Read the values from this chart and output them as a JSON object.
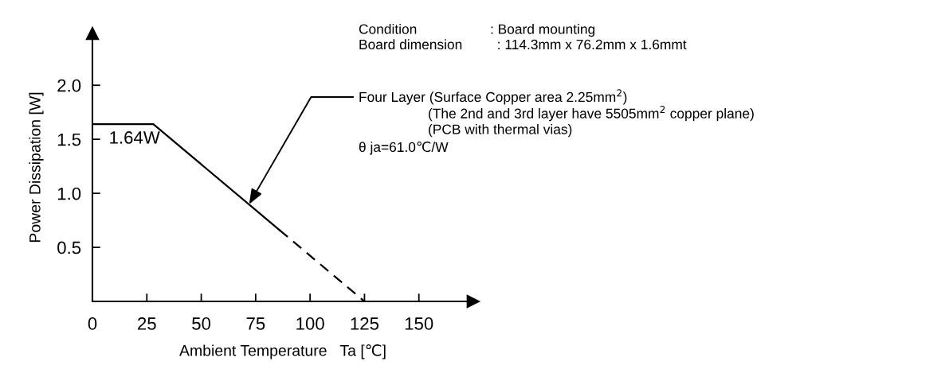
{
  "chart_data": {
    "type": "line",
    "xlabel": "Ambient Temperature   Ta [℃]",
    "ylabel": "Power Dissipation [W]",
    "series": [
      {
        "color": "#000000",
        "x": [
          0,
          28,
          86
        ],
        "values": [
          1.64,
          1.64,
          0.66
        ],
        "line_style": "solid"
      },
      {
        "color": "#000000",
        "x": [
          86,
          125
        ],
        "values": [
          0.66,
          0
        ],
        "line_style": "dashed"
      }
    ],
    "xlim": [
      0,
      175
    ],
    "ylim": [
      0,
      2.48
    ],
    "xticks": [
      0,
      25,
      50,
      75,
      100,
      125,
      150
    ],
    "yticks": [
      {
        "value": 0.5,
        "label": "0.5"
      },
      {
        "value": 1,
        "label": "1.0"
      },
      {
        "value": 1.5,
        "label": "1.5"
      },
      {
        "value": 2,
        "label": "2.0"
      }
    ],
    "grid": false,
    "legend": false,
    "marker": "none",
    "annotations": [
      {
        "text": "1.64W",
        "x": 28,
        "y": 1.64
      },
      "Condition                   : Board mounting\nBoard dimension         : 114.3mm x 76.2mm x 1.6mmt",
      {
        "text": "Four Layer (Surface Copper area 2.25mm$^{2}$)",
        "x": 72,
        "y": 0.9
      },
      "(The 2nd and 3rd layer have 5505mm$^{2}$ copper plane)",
      "(PCB with thermal vias)",
      "θ ja=61.0℃/W"
    ]
  }
}
